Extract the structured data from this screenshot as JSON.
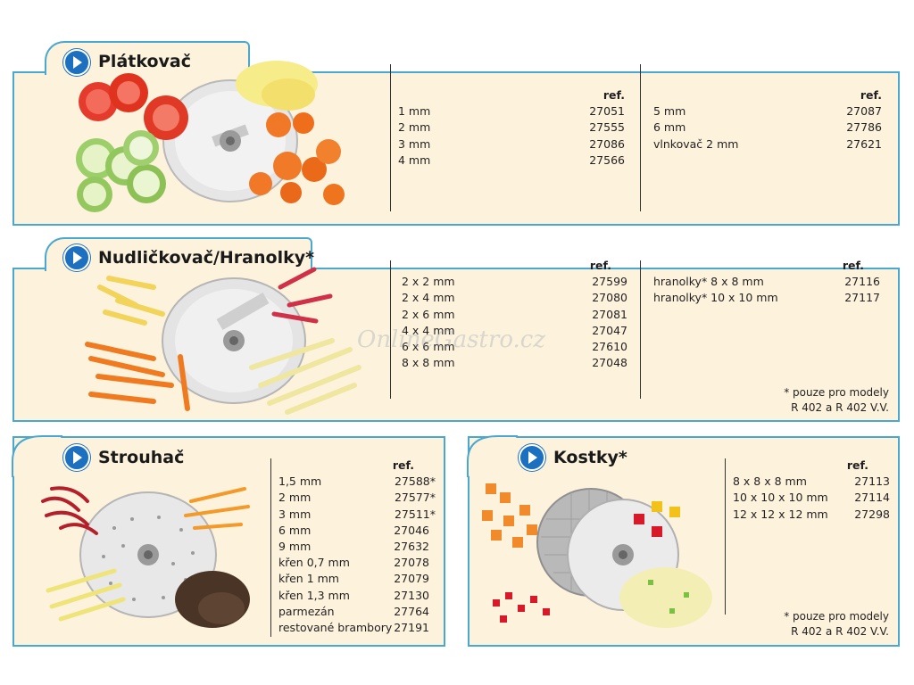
{
  "sections": [
    {
      "title": "Plátkovač",
      "columns": [
        {
          "ref_header": "ref.",
          "rows": [
            {
              "label": "1 mm",
              "ref": "27051"
            },
            {
              "label": "2 mm",
              "ref": "27555"
            },
            {
              "label": "3 mm",
              "ref": "27086"
            },
            {
              "label": "4 mm",
              "ref": "27566"
            }
          ]
        },
        {
          "ref_header": "ref.",
          "rows": [
            {
              "label": "5 mm",
              "ref": "27087"
            },
            {
              "label": "6 mm",
              "ref": "27786"
            },
            {
              "label": "vlnkovač 2 mm",
              "ref": "27621"
            }
          ]
        }
      ]
    },
    {
      "title": "Nudličkovač/Hranolky*",
      "columns": [
        {
          "ref_header": "ref.",
          "rows": [
            {
              "label": "2 x 2 mm",
              "ref": "27599"
            },
            {
              "label": "2 x 4 mm",
              "ref": "27080"
            },
            {
              "label": "2 x 6 mm",
              "ref": "27081"
            },
            {
              "label": "4 x 4 mm",
              "ref": "27047"
            },
            {
              "label": "6 x 6 mm",
              "ref": "27610"
            },
            {
              "label": "8 x 8 mm",
              "ref": "27048"
            }
          ]
        },
        {
          "ref_header": "ref.",
          "rows": [
            {
              "label": "hranolky* 8 x 8 mm",
              "ref": "27116"
            },
            {
              "label": "hranolky* 10 x 10 mm",
              "ref": "27117"
            }
          ]
        }
      ],
      "note": [
        "* pouze pro modely",
        "R 402 a R 402 V.V."
      ]
    },
    {
      "title": "Strouhač",
      "columns": [
        {
          "ref_header": "ref.",
          "rows": [
            {
              "label": "1,5 mm",
              "ref": "27588*"
            },
            {
              "label": "2 mm",
              "ref": "27577*"
            },
            {
              "label": "3 mm",
              "ref": "27511*"
            },
            {
              "label": "6 mm",
              "ref": "27046"
            },
            {
              "label": "9 mm",
              "ref": "27632"
            },
            {
              "label": "křen 0,7 mm",
              "ref": "27078"
            },
            {
              "label": "křen 1 mm",
              "ref": "27079"
            },
            {
              "label": "křen 1,3 mm",
              "ref": "27130"
            },
            {
              "label": "parmezán",
              "ref": "27764"
            },
            {
              "label": "restované brambory",
              "ref": "27191"
            }
          ]
        }
      ]
    },
    {
      "title": "Kostky*",
      "columns": [
        {
          "ref_header": "ref.",
          "rows": [
            {
              "label": "8 x 8 x 8 mm",
              "ref": "27113"
            },
            {
              "label": "10 x 10 x 10 mm",
              "ref": "27114"
            },
            {
              "label": "12 x 12 x 12 mm",
              "ref": "27298"
            }
          ]
        }
      ],
      "note": [
        "* pouze pro modely",
        "R 402 a R 402 V.V."
      ]
    }
  ],
  "watermark": "OnlineGastro.cz",
  "colors": {
    "border": "#4aa8d0",
    "panel_bg": "#fdf3dd",
    "play_icon": "#1d6fbf"
  }
}
